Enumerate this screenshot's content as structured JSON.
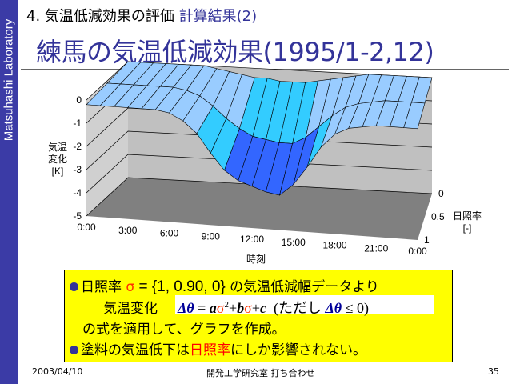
{
  "side_label": "Matsuhashi Laboratory",
  "header": {
    "section": "4. 気温低減効果の評価",
    "subsection": "計算結果(2)"
  },
  "title": "練馬の気温低減効果(1995/1-2,12)",
  "chart_data": {
    "type": "surface",
    "zlabel": [
      "気温",
      "変化",
      "[K]"
    ],
    "xlabel": "時刻",
    "ylabel": [
      "日照率",
      "[-]"
    ],
    "x_ticks": [
      "0:00",
      "3:00",
      "6:00",
      "9:00",
      "12:00",
      "15:00",
      "18:00",
      "21:00",
      "0:00"
    ],
    "y_ticks": [
      "0",
      "0.5",
      "1"
    ],
    "z_ticks": [
      "0",
      "-1",
      "-2",
      "-3",
      "-4",
      "-5"
    ],
    "zlim": [
      -5,
      0
    ],
    "x_hours": [
      0,
      1,
      2,
      3,
      4,
      5,
      6,
      7,
      8,
      9,
      10,
      11,
      12,
      13,
      14,
      15,
      16,
      17,
      18,
      19,
      20,
      21,
      22,
      23,
      24
    ],
    "series": [
      {
        "sigma": 0,
        "values": [
          0,
          0,
          0,
          0,
          0,
          0,
          0,
          -0.1,
          -0.2,
          -0.3,
          -0.4,
          -0.4,
          -0.5,
          -0.5,
          -0.5,
          -0.4,
          -0.3,
          -0.2,
          -0.1,
          0,
          0,
          0,
          0,
          0,
          0
        ]
      },
      {
        "sigma": 0.5,
        "values": [
          -0.1,
          -0.1,
          -0.1,
          -0.1,
          -0.1,
          -0.1,
          -0.2,
          -0.4,
          -0.8,
          -1.3,
          -1.7,
          -2.0,
          -2.1,
          -2.2,
          -2.2,
          -1.9,
          -1.4,
          -0.9,
          -0.5,
          -0.3,
          -0.2,
          -0.1,
          -0.1,
          -0.1,
          -0.1
        ]
      },
      {
        "sigma": 1,
        "values": [
          -0.2,
          -0.2,
          -0.2,
          -0.2,
          -0.2,
          -0.2,
          -0.3,
          -0.6,
          -1.1,
          -1.9,
          -2.6,
          -3.0,
          -3.2,
          -3.4,
          -3.5,
          -3.0,
          -2.2,
          -1.3,
          -0.7,
          -0.4,
          -0.3,
          -0.2,
          -0.2,
          -0.2,
          -0.2
        ]
      }
    ],
    "band_colors": [
      "#99ccff",
      "#33ccff",
      "#3366ff",
      "#3333cc",
      "#333399"
    ]
  },
  "notes": {
    "line1_a": "日照率 ",
    "sigma": "σ",
    "line1_b": " = {1, 0.90, 0}",
    "line1_c": " の気温低減幅データより",
    "line2_a": "気温変化",
    "formula": {
      "dtheta": "Δθ",
      "eq": " = ",
      "a": "a",
      "sig": "σ",
      "sq": "2",
      "plus1": "+",
      "b": "b",
      "sig2": "σ",
      "plus2": "+",
      "c": "c",
      "cond_a": "(ただし ",
      "cond_d": "Δθ",
      "cond_b": " ≤ 0)"
    },
    "line3": "の式を適用して、グラフを作成。",
    "line4_a": "塗料の気温低下は",
    "line4_red": "日照率",
    "line4_b": "にしか影響されない。"
  },
  "footer": {
    "date": "2003/04/10",
    "center": "開発工学研究室 打ち合わせ",
    "page": "35"
  }
}
